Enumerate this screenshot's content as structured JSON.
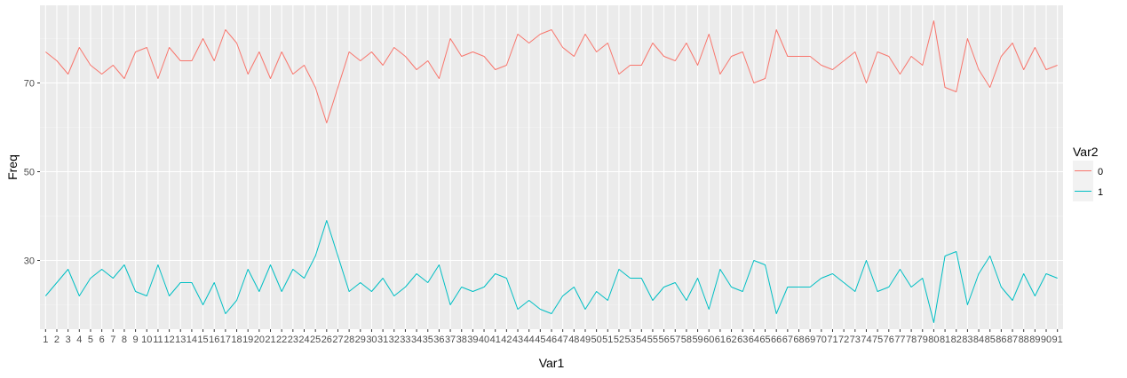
{
  "chart_data": {
    "type": "line",
    "xlabel": "Var1",
    "ylabel": "Freq",
    "x": [
      1,
      2,
      3,
      4,
      5,
      6,
      7,
      8,
      9,
      10,
      11,
      12,
      13,
      14,
      15,
      16,
      17,
      18,
      19,
      20,
      21,
      22,
      23,
      24,
      25,
      26,
      27,
      28,
      29,
      30,
      31,
      32,
      33,
      34,
      35,
      36,
      37,
      38,
      39,
      40,
      41,
      42,
      43,
      44,
      45,
      46,
      47,
      48,
      49,
      50,
      51,
      52,
      53,
      54,
      55,
      56,
      57,
      58,
      59,
      60,
      61,
      62,
      63,
      64,
      65,
      66,
      67,
      68,
      69,
      70,
      71,
      72,
      73,
      74,
      75,
      76,
      77,
      78,
      79,
      80,
      81,
      82,
      83,
      84,
      85,
      86,
      87,
      88,
      89,
      90,
      91
    ],
    "y_ticks": [
      30,
      50,
      70
    ],
    "ylim": [
      14.5,
      87.5
    ],
    "grid": true,
    "legend": {
      "title": "Var2",
      "position": "right"
    },
    "series": [
      {
        "name": "0",
        "color": "#F8766D",
        "values": [
          77,
          75,
          72,
          78,
          74,
          72,
          74,
          71,
          77,
          78,
          71,
          78,
          75,
          75,
          80,
          75,
          82,
          79,
          72,
          77,
          71,
          77,
          72,
          74,
          69,
          61,
          69,
          77,
          75,
          77,
          74,
          78,
          76,
          73,
          75,
          71,
          80,
          76,
          77,
          76,
          73,
          74,
          81,
          79,
          81,
          82,
          78,
          76,
          81,
          77,
          79,
          72,
          74,
          74,
          79,
          76,
          75,
          79,
          74,
          81,
          72,
          76,
          77,
          70,
          71,
          82,
          76,
          76,
          76,
          74,
          73,
          75,
          77,
          70,
          77,
          76,
          72,
          76,
          74,
          84,
          69,
          68,
          80,
          73,
          69,
          76,
          79,
          73,
          78,
          73,
          74
        ]
      },
      {
        "name": "1",
        "color": "#00BFC4",
        "values": [
          22,
          25,
          28,
          22,
          26,
          28,
          26,
          29,
          23,
          22,
          29,
          22,
          25,
          25,
          20,
          25,
          18,
          21,
          28,
          23,
          29,
          23,
          28,
          26,
          31,
          39,
          31,
          23,
          25,
          23,
          26,
          22,
          24,
          27,
          25,
          29,
          20,
          24,
          23,
          24,
          27,
          26,
          19,
          21,
          19,
          18,
          22,
          24,
          19,
          23,
          21,
          28,
          26,
          26,
          21,
          24,
          25,
          21,
          26,
          19,
          28,
          24,
          23,
          30,
          29,
          18,
          24,
          24,
          24,
          26,
          27,
          25,
          23,
          30,
          23,
          24,
          28,
          24,
          26,
          16,
          31,
          32,
          20,
          27,
          31,
          24,
          21,
          27,
          22,
          27,
          26
        ]
      }
    ]
  }
}
